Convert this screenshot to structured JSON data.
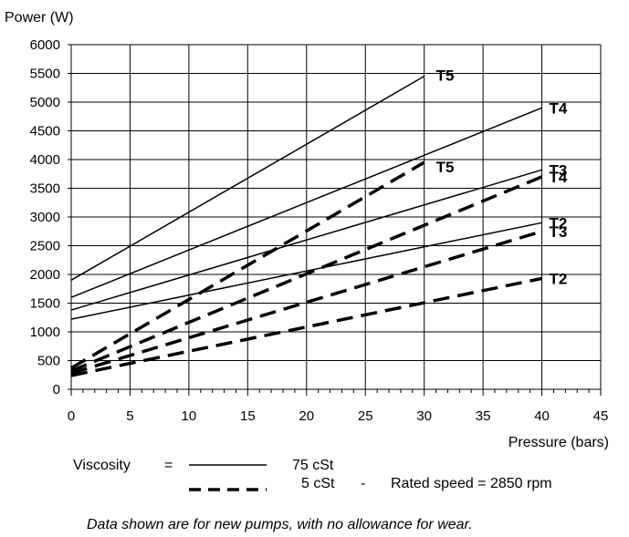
{
  "chart_data": {
    "type": "line",
    "ylabel": "Power  (W)",
    "xlabel": "Pressure  (bars)",
    "xlim": [
      0,
      45
    ],
    "ylim": [
      0,
      6000
    ],
    "x_ticks": [
      0,
      5,
      10,
      15,
      20,
      25,
      30,
      35,
      40,
      45
    ],
    "y_ticks": [
      0,
      500,
      1000,
      1500,
      2000,
      2500,
      3000,
      3500,
      4000,
      4500,
      5000,
      5500,
      6000
    ],
    "grid": true,
    "series": [
      {
        "name": "T5",
        "viscosity": "75 cSt",
        "style": "solid",
        "x": [
          0,
          30
        ],
        "y": [
          1900,
          5450
        ]
      },
      {
        "name": "T4",
        "viscosity": "75 cSt",
        "style": "solid",
        "x": [
          0,
          40
        ],
        "y": [
          1600,
          4900
        ]
      },
      {
        "name": "T3",
        "viscosity": "75 cSt",
        "style": "solid",
        "x": [
          0,
          40
        ],
        "y": [
          1380,
          3820
        ]
      },
      {
        "name": "T2",
        "viscosity": "75 cSt",
        "style": "solid",
        "x": [
          0,
          40
        ],
        "y": [
          1220,
          2900
        ]
      },
      {
        "name": "T5",
        "viscosity": "5 cSt",
        "style": "dashed",
        "x": [
          0,
          30
        ],
        "y": [
          370,
          3950
        ]
      },
      {
        "name": "T4",
        "viscosity": "5 cSt",
        "style": "dashed",
        "x": [
          0,
          40
        ],
        "y": [
          320,
          3700
        ]
      },
      {
        "name": "T3",
        "viscosity": "5 cSt",
        "style": "dashed",
        "x": [
          0,
          40
        ],
        "y": [
          280,
          2750
        ]
      },
      {
        "name": "T2",
        "viscosity": "5 cSt",
        "style": "dashed",
        "x": [
          0,
          40
        ],
        "y": [
          240,
          1930
        ]
      }
    ],
    "legend": {
      "label": "Viscosity",
      "equals": "=",
      "solid_text": "75 cSt",
      "dashed_text": "5 cSt",
      "separator": "-",
      "rated_speed": "Rated speed = 2850 rpm"
    },
    "note": "Data shown are for new pumps, with no allowance for wear."
  }
}
